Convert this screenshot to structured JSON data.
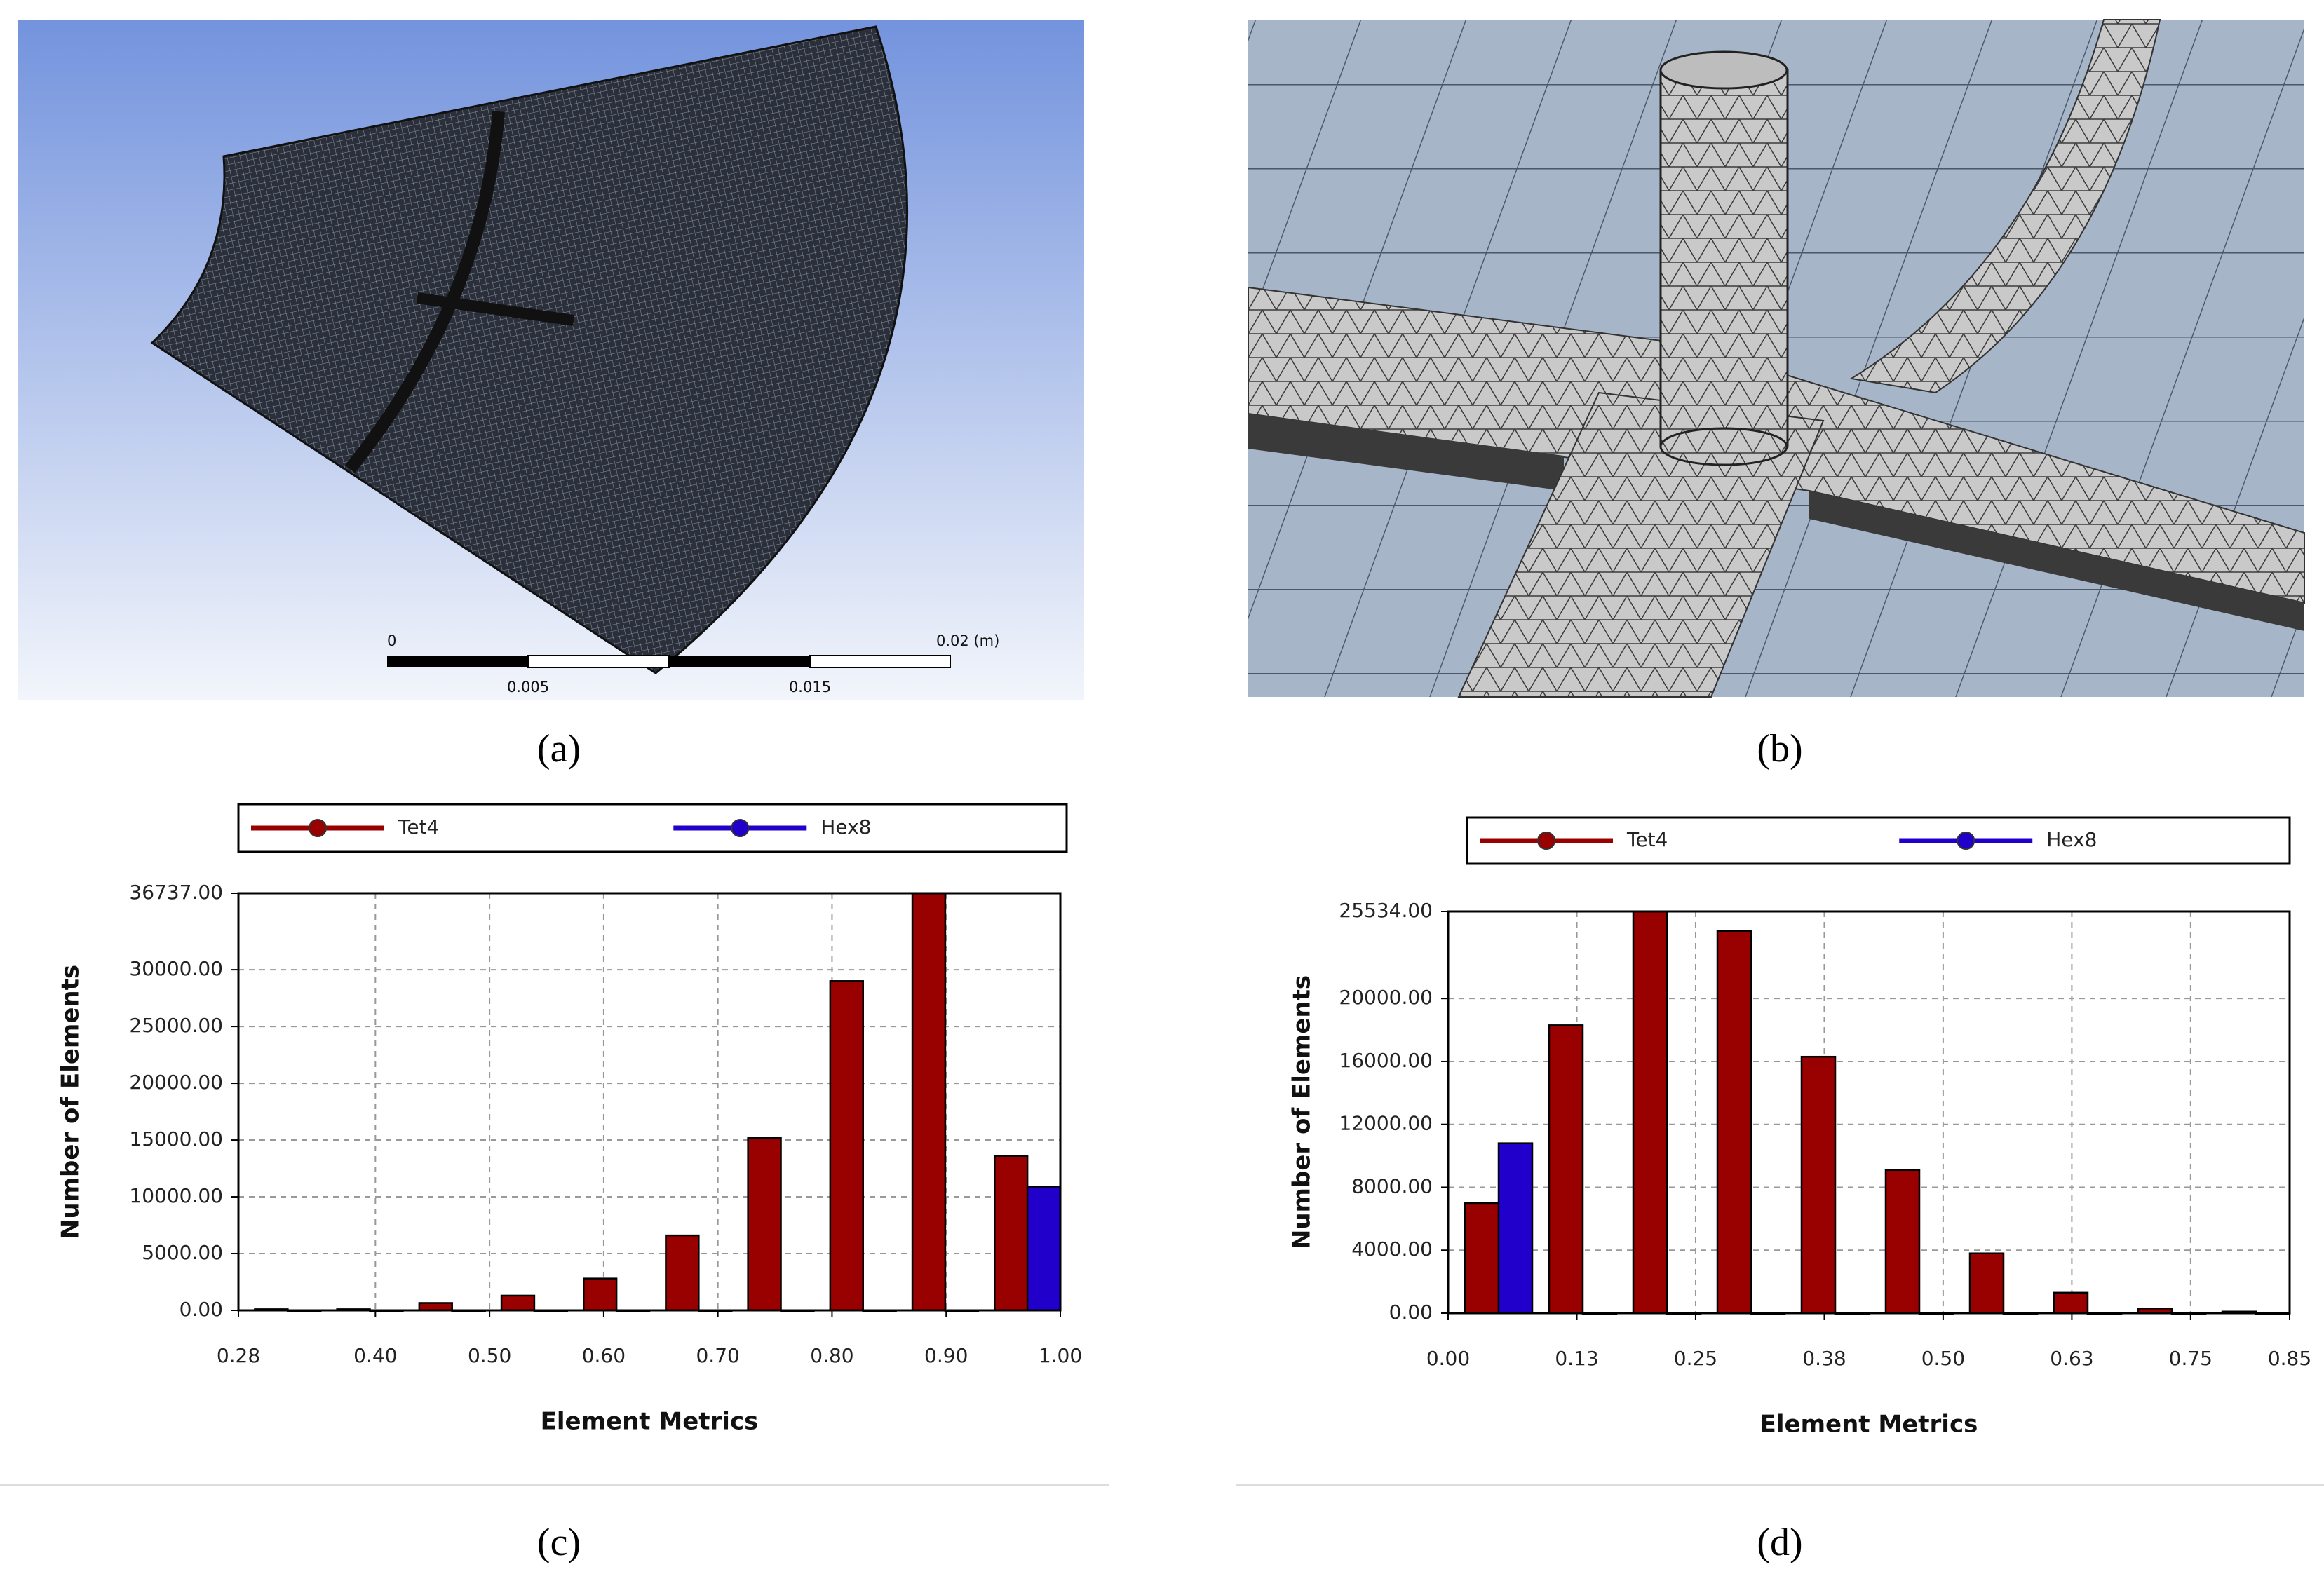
{
  "panels": [
    {
      "label": "(a)"
    },
    {
      "label": "(b)"
    },
    {
      "label": "(c)"
    },
    {
      "label": "(d)"
    }
  ],
  "scale_bar": {
    "labels": [
      "0",
      "0.005",
      "0.015",
      "0.02 (m)"
    ]
  },
  "chart_data": [
    {
      "type": "histogram",
      "xlabel": "Element Metrics",
      "ylabel": "Number of Elements",
      "bins": [
        0.28,
        0.352,
        0.424,
        0.496,
        0.568,
        0.64,
        0.712,
        0.784,
        0.856,
        0.928,
        1.0
      ],
      "series": [
        {
          "name": "Tet4",
          "color": "#990000",
          "values": [
            100,
            100,
            650,
            1300,
            2800,
            6600,
            15200,
            29000,
            36737,
            13600
          ]
        },
        {
          "name": "Hex8",
          "color": "#2200cc",
          "values": [
            0,
            0,
            0,
            0,
            0,
            0,
            0,
            0,
            0,
            10900
          ]
        }
      ],
      "xlim": [
        0.28,
        1.0
      ],
      "xticks": [
        0.28,
        {
          "value": 0.4,
          "label": "0.40"
        },
        {
          "value": 0.5,
          "label": "0.50"
        },
        {
          "value": 0.6,
          "label": "0.60"
        },
        {
          "value": 0.7,
          "label": "0.70"
        },
        {
          "value": 0.8,
          "label": "0.80"
        },
        {
          "value": 0.9,
          "label": "0.90"
        },
        {
          "value": 1.0,
          "label": "1.00"
        }
      ],
      "ylim": [
        0,
        36737
      ],
      "yticks": [
        {
          "value": 0,
          "label": "0.00"
        },
        {
          "value": 5000,
          "label": "5000.00"
        },
        {
          "value": 10000,
          "label": "10000.00"
        },
        {
          "value": 15000,
          "label": "15000.00"
        },
        {
          "value": 20000,
          "label": "20000.00"
        },
        {
          "value": 25000,
          "label": "25000.00"
        },
        {
          "value": 30000,
          "label": "30000.00"
        },
        {
          "value": 36737,
          "label": "36737.00"
        }
      ],
      "grid": true,
      "legend": "top"
    },
    {
      "type": "histogram",
      "xlabel": "Element Metrics",
      "ylabel": "Number of Elements",
      "bins": [
        0,
        0.085,
        0.17,
        0.255,
        0.34,
        0.425,
        0.51,
        0.595,
        0.68,
        0.765,
        0.85
      ],
      "series": [
        {
          "name": "Tet4",
          "color": "#990000",
          "values": [
            7000,
            18300,
            25534,
            24300,
            16300,
            9100,
            3800,
            1300,
            300,
            100
          ]
        },
        {
          "name": "Hex8",
          "color": "#2200cc",
          "values": [
            10800,
            0,
            0,
            0,
            0,
            0,
            0,
            0,
            0,
            0
          ]
        }
      ],
      "xlim": [
        0,
        0.85
      ],
      "xticks": [
        {
          "value": 0,
          "label": "0.00"
        },
        0.13,
        0.25,
        0.38,
        {
          "value": 0.5,
          "label": "0.50"
        },
        0.63,
        0.75,
        0.85
      ],
      "ylim": [
        0,
        25534
      ],
      "yticks": [
        {
          "value": 0,
          "label": "0.00"
        },
        {
          "value": 4000,
          "label": "4000.00"
        },
        {
          "value": 8000,
          "label": "8000.00"
        },
        {
          "value": 12000,
          "label": "12000.00"
        },
        {
          "value": 16000,
          "label": "16000.00"
        },
        {
          "value": 20000,
          "label": "20000.00"
        },
        {
          "value": 25534,
          "label": "25534.00"
        }
      ],
      "grid": true,
      "legend": "top"
    }
  ]
}
